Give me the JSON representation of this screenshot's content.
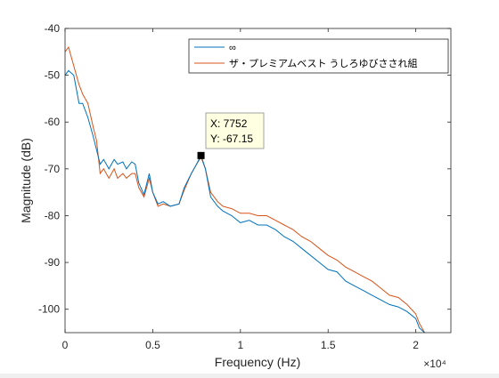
{
  "chart_data": {
    "type": "line",
    "xlabel": "Frequency (Hz)",
    "ylabel": "Magnitude (dB)",
    "xlim": [
      0,
      22000
    ],
    "ylim": [
      -105,
      -40
    ],
    "x_ticks": [
      0,
      5000,
      10000,
      15000,
      20000
    ],
    "x_tick_labels": [
      "0",
      "0.5",
      "1",
      "1.5",
      "2"
    ],
    "x_exponent_label": "×10⁴",
    "y_ticks": [
      -100,
      -90,
      -80,
      -70,
      -60,
      -50,
      -40
    ],
    "y_tick_labels": [
      "-100",
      "-90",
      "-80",
      "-70",
      "-60",
      "-50",
      "-40"
    ],
    "grid": false,
    "legend_position": "top-right",
    "series": [
      {
        "name": "∞",
        "color": "#0072bd",
        "x": [
          0,
          200,
          500,
          800,
          1000,
          1300,
          1600,
          1800,
          2000,
          2200,
          2500,
          2800,
          3000,
          3300,
          3500,
          3800,
          4000,
          4200,
          4500,
          4800,
          5000,
          5300,
          5600,
          6000,
          6500,
          6800,
          7200,
          7500,
          7752,
          8000,
          8300,
          8700,
          9000,
          9500,
          10000,
          10500,
          11000,
          11500,
          12000,
          12500,
          13000,
          13500,
          14000,
          14500,
          15000,
          15500,
          16000,
          16500,
          17000,
          17500,
          18000,
          18500,
          19000,
          19500,
          20000,
          20200,
          20500
        ],
        "y": [
          -50,
          -49,
          -50,
          -56,
          -56,
          -59,
          -63,
          -66,
          -69,
          -68,
          -70,
          -68,
          -69,
          -68.5,
          -70,
          -68.5,
          -69,
          -73,
          -75.5,
          -71,
          -75,
          -77.5,
          -77,
          -78,
          -77.5,
          -74,
          -71,
          -69,
          -67.15,
          -70,
          -76,
          -78,
          -79,
          -80,
          -81.5,
          -81,
          -82,
          -82,
          -83,
          -84.5,
          -85.5,
          -87,
          -88.5,
          -90,
          -91.5,
          -92,
          -94,
          -95,
          -96,
          -97,
          -98,
          -99,
          -99.5,
          -100.5,
          -102,
          -104,
          -105
        ]
      },
      {
        "name": "ザ・プレミアムベスト うしろゆびさされ組",
        "color": "#d95319",
        "x": [
          0,
          200,
          500,
          800,
          1000,
          1300,
          1600,
          1800,
          2000,
          2200,
          2500,
          2800,
          3000,
          3300,
          3500,
          3800,
          4000,
          4200,
          4500,
          4800,
          5000,
          5300,
          5600,
          6000,
          6500,
          6800,
          7200,
          7500,
          7752,
          8000,
          8300,
          8700,
          9000,
          9500,
          10000,
          10500,
          11000,
          11500,
          12000,
          12500,
          13000,
          13500,
          14000,
          14500,
          15000,
          15500,
          16000,
          16500,
          17000,
          17500,
          18000,
          18500,
          19000,
          19500,
          20000,
          20200,
          20500
        ],
        "y": [
          -45,
          -44,
          -48,
          -52,
          -54,
          -56,
          -61,
          -64,
          -71,
          -70,
          -72,
          -70,
          -72,
          -71,
          -72,
          -71,
          -71,
          -74,
          -76,
          -72,
          -75,
          -78,
          -77.5,
          -78,
          -77.5,
          -74.5,
          -71,
          -69,
          -67.5,
          -70,
          -75,
          -77,
          -78,
          -78.5,
          -79.5,
          -79.5,
          -80,
          -80,
          -81,
          -82,
          -83,
          -84.5,
          -85.5,
          -87,
          -88.5,
          -89.5,
          -91,
          -92,
          -93,
          -94,
          -95.5,
          -97,
          -97.5,
          -99,
          -101,
          -103,
          -105
        ]
      }
    ],
    "datatip": {
      "x_label": "X: 7752",
      "y_label": "Y: -67.15",
      "x": 7752,
      "y": -67.15
    }
  }
}
